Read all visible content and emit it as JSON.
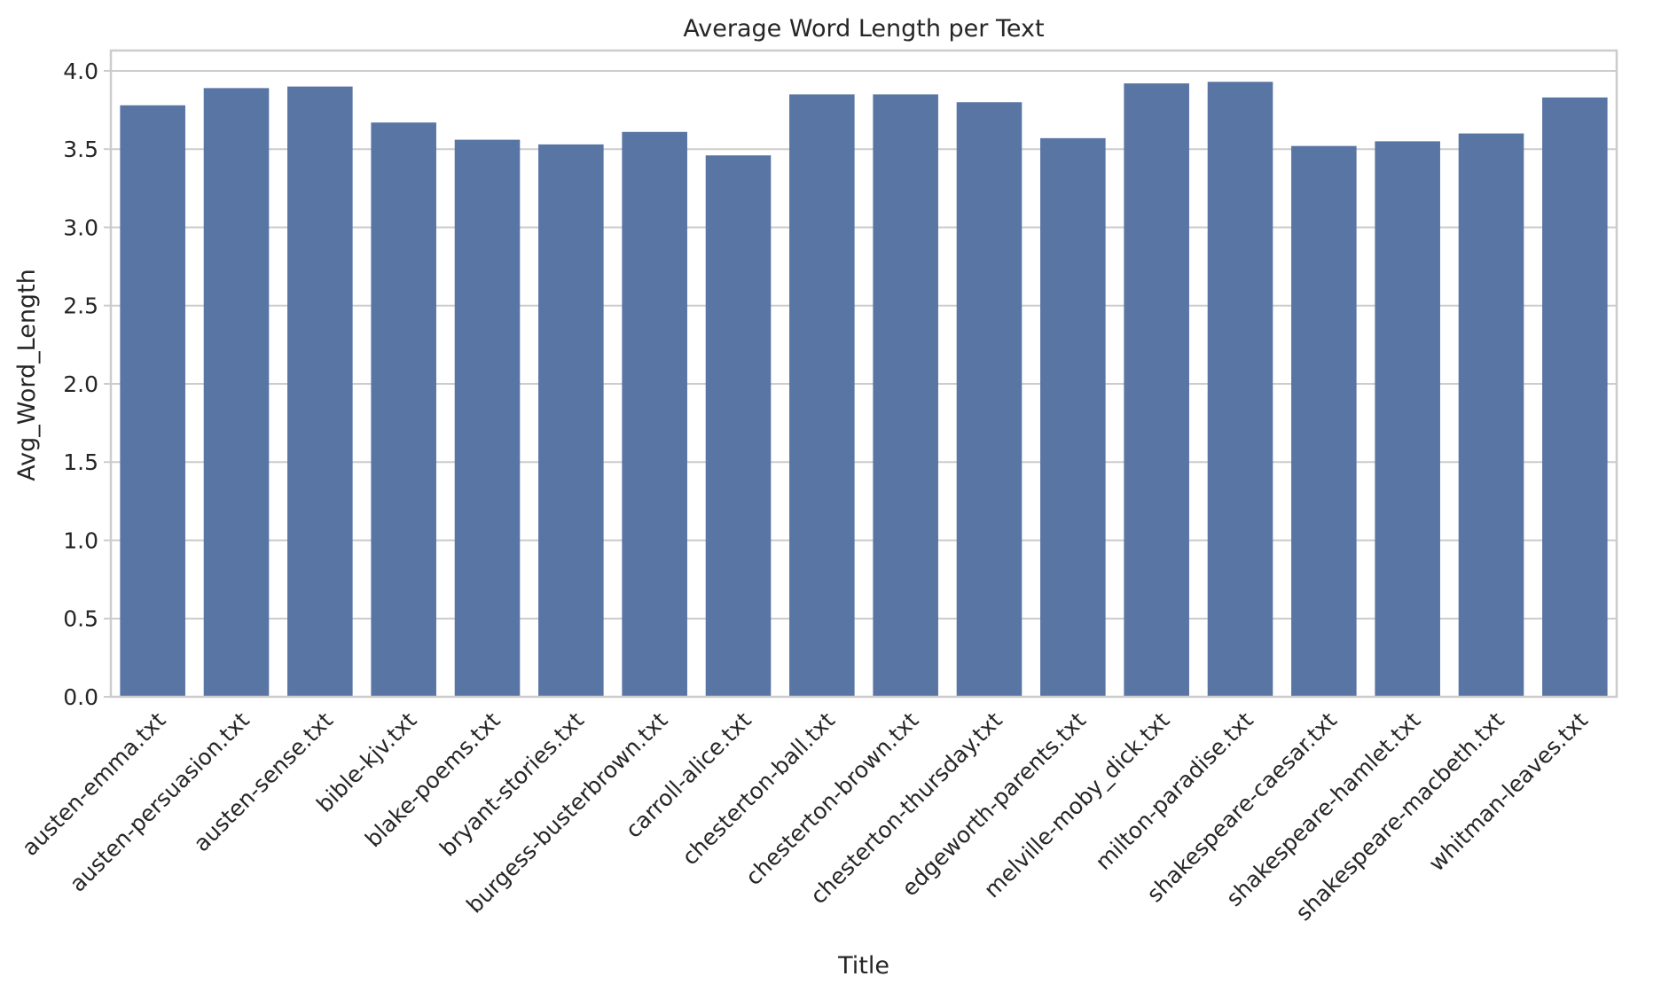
{
  "colors": {
    "bar": "#5975a4",
    "grid": "#cccccc",
    "text": "#262626",
    "background": "#ffffff"
  },
  "chart_data": {
    "type": "bar",
    "title": "Average Word Length per Text",
    "xlabel": "Title",
    "ylabel": "Avg_Word_Length",
    "ylim": [
      0,
      4.13
    ],
    "yticks": [
      "0.0",
      "0.5",
      "1.0",
      "1.5",
      "2.0",
      "2.5",
      "3.0",
      "3.5",
      "4.0"
    ],
    "grid": "horizontal",
    "categories": [
      "austen-emma.txt",
      "austen-persuasion.txt",
      "austen-sense.txt",
      "bible-kjv.txt",
      "blake-poems.txt",
      "bryant-stories.txt",
      "burgess-busterbrown.txt",
      "carroll-alice.txt",
      "chesterton-ball.txt",
      "chesterton-brown.txt",
      "chesterton-thursday.txt",
      "edgeworth-parents.txt",
      "melville-moby_dick.txt",
      "milton-paradise.txt",
      "shakespeare-caesar.txt",
      "shakespeare-hamlet.txt",
      "shakespeare-macbeth.txt",
      "whitman-leaves.txt"
    ],
    "values": [
      3.78,
      3.89,
      3.9,
      3.67,
      3.56,
      3.53,
      3.61,
      3.46,
      3.85,
      3.85,
      3.8,
      3.57,
      3.92,
      3.93,
      3.52,
      3.55,
      3.6,
      3.83
    ]
  }
}
